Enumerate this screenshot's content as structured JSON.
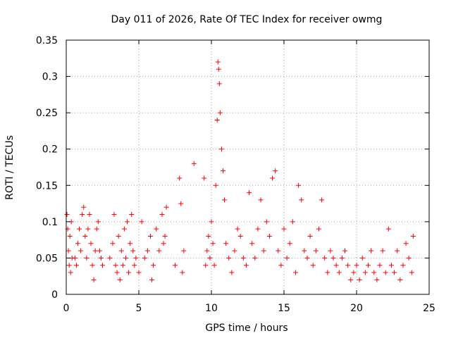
{
  "chart_data": {
    "type": "scatter",
    "title": "Day 011 of 2026, Rate Of TEC Index for receiver owmg",
    "xlabel": "GPS time / hours",
    "ylabel": "ROTI / TECUs",
    "xlim": [
      0,
      25
    ],
    "ylim": [
      0,
      0.35
    ],
    "xticks": [
      "0",
      "5",
      "10",
      "15",
      "20",
      "25"
    ],
    "yticks": [
      "0",
      "0.05",
      "0.1",
      "0.15",
      "0.2",
      "0.25",
      "0.3",
      "0.35"
    ],
    "grid": true,
    "marker": "+",
    "color": "#ff0000",
    "series": [
      {
        "points": [
          [
            0.05,
            0.11
          ],
          [
            0.1,
            0.09
          ],
          [
            0.15,
            0.06
          ],
          [
            0.2,
            0.04
          ],
          [
            0.25,
            0.08
          ],
          [
            0.3,
            0.03
          ],
          [
            0.35,
            0.1
          ],
          [
            0.4,
            0.05
          ],
          [
            0.6,
            0.05
          ],
          [
            0.7,
            0.04
          ],
          [
            0.8,
            0.07
          ],
          [
            0.9,
            0.09
          ],
          [
            1.0,
            0.06
          ],
          [
            1.1,
            0.11
          ],
          [
            1.2,
            0.12
          ],
          [
            1.3,
            0.08
          ],
          [
            1.4,
            0.05
          ],
          [
            1.5,
            0.09
          ],
          [
            1.6,
            0.11
          ],
          [
            1.7,
            0.07
          ],
          [
            1.8,
            0.04
          ],
          [
            1.9,
            0.02
          ],
          [
            2.0,
            0.06
          ],
          [
            2.1,
            0.09
          ],
          [
            2.2,
            0.1
          ],
          [
            2.3,
            0.06
          ],
          [
            2.4,
            0.05
          ],
          [
            2.5,
            0.04
          ],
          [
            3.0,
            0.05
          ],
          [
            3.2,
            0.07
          ],
          [
            3.3,
            0.11
          ],
          [
            3.4,
            0.04
          ],
          [
            3.5,
            0.03
          ],
          [
            3.6,
            0.08
          ],
          [
            3.7,
            0.02
          ],
          [
            3.8,
            0.06
          ],
          [
            3.9,
            0.04
          ],
          [
            4.0,
            0.09
          ],
          [
            4.1,
            0.05
          ],
          [
            4.2,
            0.1
          ],
          [
            4.3,
            0.03
          ],
          [
            4.4,
            0.07
          ],
          [
            4.5,
            0.11
          ],
          [
            4.6,
            0.06
          ],
          [
            4.7,
            0.04
          ],
          [
            4.8,
            0.05
          ],
          [
            5.0,
            0.03
          ],
          [
            5.2,
            0.1
          ],
          [
            5.4,
            0.05
          ],
          [
            5.6,
            0.06
          ],
          [
            5.8,
            0.08
          ],
          [
            5.9,
            0.02
          ],
          [
            6.0,
            0.04
          ],
          [
            6.2,
            0.09
          ],
          [
            6.4,
            0.06
          ],
          [
            6.6,
            0.11
          ],
          [
            6.7,
            0.07
          ],
          [
            6.8,
            0.08
          ],
          [
            6.9,
            0.12
          ],
          [
            7.5,
            0.04
          ],
          [
            7.8,
            0.16
          ],
          [
            7.9,
            0.125
          ],
          [
            8.0,
            0.03
          ],
          [
            8.1,
            0.06
          ],
          [
            8.8,
            0.18
          ],
          [
            9.5,
            0.16
          ],
          [
            9.6,
            0.04
          ],
          [
            9.7,
            0.06
          ],
          [
            9.8,
            0.08
          ],
          [
            9.9,
            0.05
          ],
          [
            10.0,
            0.1
          ],
          [
            10.1,
            0.07
          ],
          [
            10.2,
            0.04
          ],
          [
            10.3,
            0.15
          ],
          [
            10.4,
            0.24
          ],
          [
            10.45,
            0.32
          ],
          [
            10.5,
            0.31
          ],
          [
            10.55,
            0.29
          ],
          [
            10.6,
            0.25
          ],
          [
            10.7,
            0.2
          ],
          [
            10.8,
            0.17
          ],
          [
            10.9,
            0.13
          ],
          [
            11.0,
            0.07
          ],
          [
            11.2,
            0.05
          ],
          [
            11.4,
            0.03
          ],
          [
            11.6,
            0.06
          ],
          [
            11.8,
            0.09
          ],
          [
            12.0,
            0.08
          ],
          [
            12.2,
            0.05
          ],
          [
            12.4,
            0.04
          ],
          [
            12.6,
            0.14
          ],
          [
            12.8,
            0.07
          ],
          [
            13.0,
            0.05
          ],
          [
            13.2,
            0.09
          ],
          [
            13.4,
            0.13
          ],
          [
            13.6,
            0.06
          ],
          [
            13.8,
            0.1
          ],
          [
            14.0,
            0.08
          ],
          [
            14.2,
            0.16
          ],
          [
            14.4,
            0.17
          ],
          [
            14.6,
            0.06
          ],
          [
            14.8,
            0.04
          ],
          [
            15.0,
            0.09
          ],
          [
            15.2,
            0.05
          ],
          [
            15.4,
            0.07
          ],
          [
            15.6,
            0.1
          ],
          [
            15.8,
            0.03
          ],
          [
            16.0,
            0.15
          ],
          [
            16.2,
            0.13
          ],
          [
            16.4,
            0.06
          ],
          [
            16.6,
            0.05
          ],
          [
            16.8,
            0.08
          ],
          [
            17.0,
            0.04
          ],
          [
            17.2,
            0.06
          ],
          [
            17.4,
            0.09
          ],
          [
            17.6,
            0.13
          ],
          [
            17.8,
            0.05
          ],
          [
            18.0,
            0.03
          ],
          [
            18.2,
            0.06
          ],
          [
            18.4,
            0.05
          ],
          [
            18.6,
            0.04
          ],
          [
            18.8,
            0.03
          ],
          [
            19.0,
            0.05
          ],
          [
            19.2,
            0.06
          ],
          [
            19.4,
            0.04
          ],
          [
            19.6,
            0.02
          ],
          [
            19.8,
            0.03
          ],
          [
            20.0,
            0.04
          ],
          [
            20.2,
            0.02
          ],
          [
            20.4,
            0.05
          ],
          [
            20.6,
            0.03
          ],
          [
            20.8,
            0.04
          ],
          [
            21.0,
            0.06
          ],
          [
            21.2,
            0.03
          ],
          [
            21.4,
            0.02
          ],
          [
            21.6,
            0.04
          ],
          [
            21.8,
            0.06
          ],
          [
            22.0,
            0.03
          ],
          [
            22.2,
            0.09
          ],
          [
            22.4,
            0.04
          ],
          [
            22.6,
            0.03
          ],
          [
            22.8,
            0.06
          ],
          [
            23.0,
            0.02
          ],
          [
            23.2,
            0.04
          ],
          [
            23.4,
            0.07
          ],
          [
            23.6,
            0.05
          ],
          [
            23.8,
            0.03
          ],
          [
            23.9,
            0.08
          ]
        ]
      }
    ]
  }
}
